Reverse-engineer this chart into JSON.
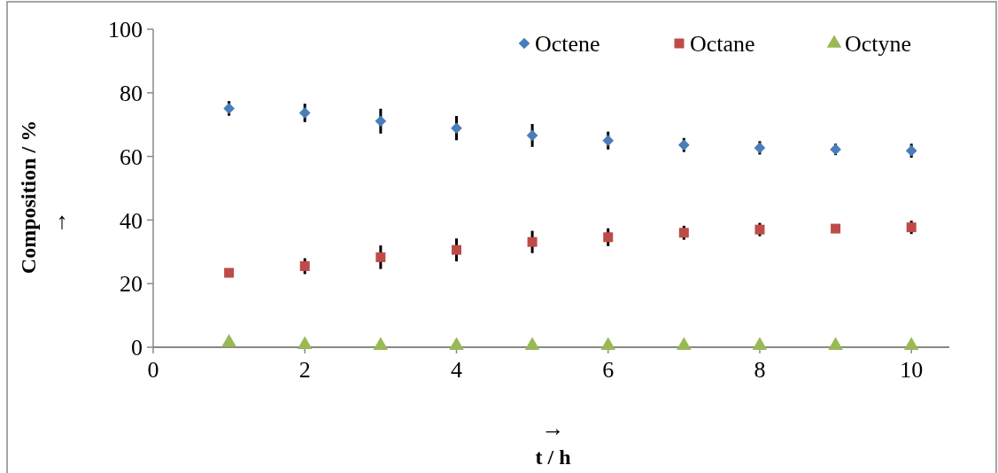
{
  "chart_data": {
    "type": "scatter",
    "xlabel": "t / h",
    "ylabel": "Composition / %",
    "annotations": [
      "→",
      "↑"
    ],
    "x": [
      1,
      2,
      3,
      4,
      5,
      6,
      7,
      8,
      9,
      10
    ],
    "series": [
      {
        "name": "Octene",
        "color": "#4a7ebb",
        "marker": "diamond",
        "values": [
          75.1,
          73.7,
          71.1,
          68.9,
          66.6,
          65.0,
          63.6,
          62.7,
          62.2,
          61.8
        ],
        "errors": [
          2.3,
          2.9,
          3.9,
          3.8,
          3.6,
          2.8,
          2.2,
          2.1,
          1.8,
          2.2
        ]
      },
      {
        "name": "Octane",
        "color": "#be4b48",
        "marker": "square",
        "values": [
          23.4,
          25.5,
          28.3,
          30.6,
          33.1,
          34.6,
          36.0,
          37.0,
          37.3,
          37.7
        ],
        "errors": [
          null,
          2.5,
          3.7,
          3.6,
          3.5,
          2.8,
          2.2,
          2.1,
          null,
          2.1
        ]
      },
      {
        "name": "Octyne",
        "color": "#98b954",
        "marker": "triangle",
        "values": [
          1.5,
          0.8,
          0.5,
          0.5,
          0.5,
          0.5,
          0.5,
          0.5,
          0.5,
          0.5
        ]
      }
    ],
    "xlim": [
      0,
      10.5
    ],
    "xticks": [
      0,
      2,
      4,
      6,
      8,
      10
    ],
    "ylim": [
      0,
      100
    ],
    "yticks": [
      0,
      20,
      40,
      60,
      80,
      100
    ],
    "grid": false,
    "legend": "top right"
  }
}
